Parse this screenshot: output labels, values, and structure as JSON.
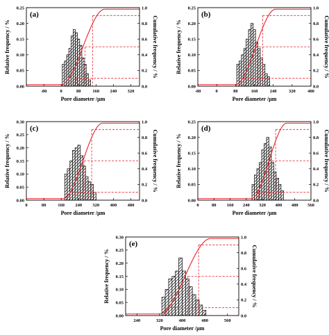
{
  "figure": {
    "xlabel": "Pore diameter /µm",
    "ylabel_left": "Relative frequency / %",
    "ylabel_right": "Cumulative frequency / %"
  },
  "colors": {
    "bars": "#000000",
    "cumulative_line": "#e8202a",
    "guides": "#e8202a"
  },
  "chart_data": [
    {
      "type": "bar",
      "panel": "(a)",
      "xlim": [
        -160,
        360
      ],
      "x_ticks": [
        -80,
        0,
        80,
        160,
        240,
        320
      ],
      "ylim": [
        0,
        0.25
      ],
      "y_ticks": [
        "0.00",
        "0.05",
        "0.10",
        "0.15",
        "0.20",
        "0.25"
      ],
      "y2lim": [
        0,
        1.0
      ],
      "y2_ticks": [
        "0.0",
        "0.2",
        "0.4",
        "0.6",
        "0.8",
        "1.0"
      ],
      "bin_width": 10,
      "x": [
        10,
        20,
        30,
        40,
        50,
        60,
        70,
        80,
        90,
        100,
        110,
        120,
        130
      ],
      "values": [
        0.07,
        0.08,
        0.1,
        0.12,
        0.16,
        0.18,
        0.17,
        0.15,
        0.13,
        0.09,
        0.07,
        0.04,
        0.02
      ],
      "cum_start": 0,
      "cum_end": 200,
      "markers": [
        {
          "x": 110,
          "y2": 0.5
        },
        {
          "x": 145,
          "y2": 0.9
        },
        {
          "x": 70,
          "y2": 0.1
        }
      ]
    },
    {
      "type": "bar",
      "panel": "(b)",
      "xlim": [
        -80,
        400
      ],
      "x_ticks": [
        -80,
        0,
        80,
        160,
        240,
        320,
        400
      ],
      "ylim": [
        0,
        0.25
      ],
      "y_ticks": [
        "0.00",
        "0.05",
        "0.10",
        "0.15",
        "0.20",
        "0.25"
      ],
      "y2lim": [
        0,
        1.0
      ],
      "y2_ticks": [
        "0.0",
        "0.2",
        "0.4",
        "0.6",
        "0.8",
        "1.0"
      ],
      "bin_width": 10,
      "x": [
        90,
        100,
        110,
        120,
        130,
        140,
        150,
        160,
        170,
        180,
        190,
        200,
        210,
        220
      ],
      "values": [
        0.07,
        0.08,
        0.1,
        0.12,
        0.15,
        0.18,
        0.2,
        0.18,
        0.14,
        0.12,
        0.09,
        0.07,
        0.04,
        0.03
      ],
      "cum_start": 80,
      "cum_end": 250,
      "markers": [
        {
          "x": 165,
          "y2": 0.5
        },
        {
          "x": 195,
          "y2": 0.9
        },
        {
          "x": 115,
          "y2": 0.1
        }
      ]
    },
    {
      "type": "bar",
      "panel": "(c)",
      "xlim": [
        0,
        520
      ],
      "x_ticks": [
        0,
        80,
        160,
        240,
        320,
        400,
        480
      ],
      "ylim": [
        0,
        0.3
      ],
      "y_ticks": [
        "0.00",
        "0.05",
        "0.10",
        "0.15",
        "0.20",
        "0.25",
        "0.30"
      ],
      "y2lim": [
        0,
        1.0
      ],
      "y2_ticks": [
        "0.0",
        "0.2",
        "0.4",
        "0.6",
        "0.8",
        "1.0"
      ],
      "bin_width": 12,
      "x": [
        182,
        194,
        206,
        218,
        230,
        242,
        254,
        266,
        278,
        290,
        302,
        314
      ],
      "values": [
        0.1,
        0.12,
        0.15,
        0.19,
        0.2,
        0.21,
        0.17,
        0.13,
        0.09,
        0.07,
        0.06,
        0.03
      ],
      "cum_start": 170,
      "cum_end": 350,
      "markers": [
        {
          "x": 265,
          "y2": 0.5
        },
        {
          "x": 300,
          "y2": 0.9
        },
        {
          "x": 200,
          "y2": 0.1
        }
      ]
    },
    {
      "type": "bar",
      "panel": "(d)",
      "xlim": [
        0,
        560
      ],
      "x_ticks": [
        0,
        80,
        160,
        240,
        320,
        400,
        480,
        560
      ],
      "ylim": [
        0,
        0.25
      ],
      "y_ticks": [
        "0.00",
        "0.05",
        "0.10",
        "0.15",
        "0.20",
        "0.25"
      ],
      "y2lim": [
        0,
        1.0
      ],
      "y2_ticks": [
        "0.0",
        "0.2",
        "0.4",
        "0.6",
        "0.8",
        "1.0"
      ],
      "bin_width": 12,
      "x": [
        274,
        286,
        298,
        310,
        322,
        334,
        346,
        358,
        370,
        382,
        394,
        406,
        418
      ],
      "values": [
        0.05,
        0.08,
        0.1,
        0.12,
        0.16,
        0.18,
        0.2,
        0.17,
        0.12,
        0.09,
        0.07,
        0.05,
        0.03
      ],
      "cum_start": 265,
      "cum_end": 440,
      "markers": [
        {
          "x": 350,
          "y2": 0.5
        },
        {
          "x": 385,
          "y2": 0.9
        },
        {
          "x": 300,
          "y2": 0.1
        }
      ]
    },
    {
      "type": "bar",
      "panel": "(e)",
      "xlim": [
        200,
        600
      ],
      "x_ticks": [
        240,
        320,
        400,
        480,
        560
      ],
      "ylim": [
        0,
        0.3
      ],
      "y_ticks": [
        "0.00",
        "0.05",
        "0.10",
        "0.15",
        "0.20",
        "0.25",
        "0.30"
      ],
      "y2lim": [
        0,
        1.0
      ],
      "y2_ticks": [
        "0.0",
        "0.2",
        "0.4",
        "0.6",
        "0.8",
        "1.0"
      ],
      "bin_width": 12,
      "x": [
        334,
        346,
        358,
        370,
        382,
        394,
        406,
        418,
        430,
        442,
        454,
        466,
        478
      ],
      "values": [
        0.07,
        0.1,
        0.14,
        0.15,
        0.17,
        0.22,
        0.17,
        0.14,
        0.11,
        0.08,
        0.06,
        0.04,
        0.02
      ],
      "cum_start": 320,
      "cum_end": 500,
      "markers": [
        {
          "x": 420,
          "y2": 0.5
        },
        {
          "x": 458,
          "y2": 0.9
        },
        {
          "x": 345,
          "y2": 0.1
        }
      ]
    }
  ]
}
